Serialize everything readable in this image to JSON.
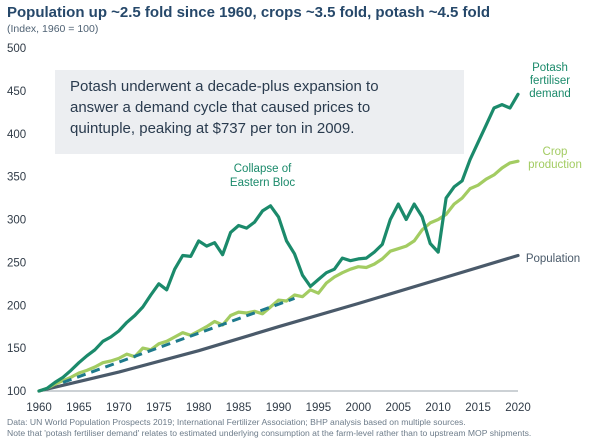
{
  "header": {
    "title": "Population up ~2.5 fold since 1960, crops ~3.5 fold, potash ~4.5 fold",
    "subtitle": "(Index, 1960 = 100)"
  },
  "callout": {
    "lines": [
      "Potash underwent a decade-plus  expansion to",
      "answer a demand cycle that caused prices to",
      "quintuple, peaking at $737 per ton in 2009."
    ]
  },
  "source": {
    "lines": [
      "Data: UN World Population Prospects 2019; International Fertilizer Association; BHP analysis based on multiple sources.",
      "Note that 'potash fertiliser demand' relates to estimated underlying consumption at the farm-level rather than to upstream MOP shipments."
    ]
  },
  "colors": {
    "potash": "#1b8a6b",
    "crop": "#a3cc62",
    "population": "#4a5a6a",
    "trend": "#1e7a8c",
    "title": "#26486a"
  },
  "chart_data": {
    "type": "line",
    "title": "Population up ~2.5 fold since 1960, crops ~3.5 fold, potash ~4.5 fold",
    "ylabel": "(Index, 1960 = 100)",
    "xlim": [
      1960,
      2020
    ],
    "ylim": [
      100,
      500
    ],
    "x_ticks": [
      1960,
      1965,
      1970,
      1975,
      1980,
      1985,
      1990,
      1995,
      2000,
      2005,
      2010,
      2015,
      2020
    ],
    "y_ticks": [
      100,
      150,
      200,
      250,
      300,
      350,
      400,
      450,
      500
    ],
    "grid": false,
    "legend": "inline labels at line ends",
    "annotations": [
      {
        "text": "Collapse of Eastern Bloc",
        "lines": [
          "Collapse of",
          "Eastern Bloc"
        ],
        "x": 1988,
        "y": 343
      }
    ],
    "series": [
      {
        "name": "Potash fertiliser demand",
        "label_lines": [
          "Potash",
          "fertiliser",
          "demand"
        ],
        "x": [
          1960,
          1961,
          1962,
          1963,
          1964,
          1965,
          1966,
          1967,
          1968,
          1969,
          1970,
          1971,
          1972,
          1973,
          1974,
          1975,
          1976,
          1977,
          1978,
          1979,
          1980,
          1981,
          1982,
          1983,
          1984,
          1985,
          1986,
          1987,
          1988,
          1989,
          1990,
          1991,
          1992,
          1993,
          1994,
          1995,
          1996,
          1997,
          1998,
          1999,
          2000,
          2001,
          2002,
          2003,
          2004,
          2005,
          2006,
          2007,
          2008,
          2009,
          2010,
          2011,
          2012,
          2013,
          2014,
          2015,
          2016,
          2017,
          2018,
          2019,
          2020
        ],
        "values": [
          100,
          103,
          110,
          116,
          124,
          133,
          141,
          148,
          158,
          163,
          170,
          180,
          188,
          198,
          212,
          225,
          218,
          242,
          258,
          257,
          275,
          269,
          273,
          259,
          285,
          293,
          290,
          297,
          310,
          316,
          303,
          275,
          260,
          235,
          222,
          230,
          238,
          242,
          255,
          252,
          254,
          255,
          262,
          271,
          300,
          318,
          300,
          318,
          303,
          272,
          262,
          325,
          338,
          345,
          370,
          390,
          410,
          430,
          434,
          430,
          446
        ],
        "color": "#1b8a6b"
      },
      {
        "name": "Crop production",
        "label_lines": [
          "Crop",
          "production"
        ],
        "x": [
          1960,
          1961,
          1962,
          1963,
          1964,
          1965,
          1966,
          1967,
          1968,
          1969,
          1970,
          1971,
          1972,
          1973,
          1974,
          1975,
          1976,
          1977,
          1978,
          1979,
          1980,
          1981,
          1982,
          1983,
          1984,
          1985,
          1986,
          1987,
          1988,
          1989,
          1990,
          1991,
          1992,
          1993,
          1994,
          1995,
          1996,
          1997,
          1998,
          1999,
          2000,
          2001,
          2002,
          2003,
          2004,
          2005,
          2006,
          2007,
          2008,
          2009,
          2010,
          2011,
          2012,
          2013,
          2014,
          2015,
          2016,
          2017,
          2018,
          2019,
          2020
        ],
        "values": [
          100,
          103,
          108,
          112,
          116,
          121,
          124,
          128,
          133,
          135,
          138,
          143,
          140,
          150,
          148,
          155,
          158,
          163,
          168,
          165,
          170,
          175,
          181,
          177,
          188,
          192,
          191,
          193,
          190,
          198,
          206,
          205,
          212,
          210,
          218,
          214,
          226,
          233,
          238,
          242,
          245,
          244,
          248,
          254,
          263,
          266,
          269,
          275,
          288,
          296,
          300,
          306,
          318,
          325,
          336,
          340,
          347,
          352,
          360,
          366,
          368
        ],
        "color": "#a3cc62"
      },
      {
        "name": "Population",
        "label_lines": [
          "Population"
        ],
        "x": [
          1960,
          1970,
          1980,
          1990,
          2000,
          2010,
          2020
        ],
        "values": [
          100,
          122,
          147,
          175,
          202,
          230,
          258
        ],
        "color": "#4a5a6a"
      },
      {
        "name": "",
        "style": "dashed",
        "x": [
          1963,
          1992
        ],
        "values": [
          110,
          208
        ],
        "color": "#1e7a8c"
      }
    ]
  }
}
